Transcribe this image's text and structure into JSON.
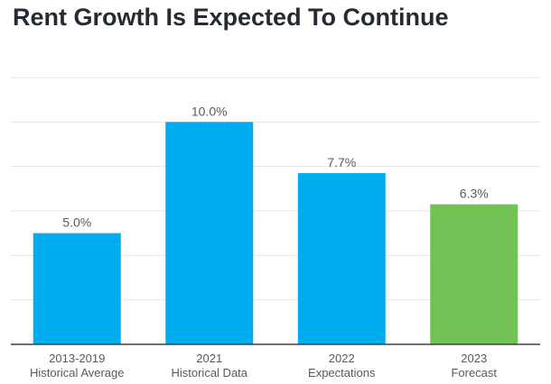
{
  "chart_data": {
    "type": "bar",
    "title": "Rent Growth Is Expected To Continue",
    "categories": [
      [
        "2013-2019",
        "Historical Average"
      ],
      [
        "2021",
        "Historical Data"
      ],
      [
        "2022",
        "Expectations"
      ],
      [
        "2023",
        "Forecast"
      ]
    ],
    "values": [
      5.0,
      10.0,
      7.7,
      6.3
    ],
    "data_labels": [
      "5.0%",
      "10.0%",
      "7.7%",
      "6.3%"
    ],
    "bar_colors": [
      "#00aeef",
      "#00aeef",
      "#00aeef",
      "#72c356"
    ],
    "ylim": [
      0,
      12
    ],
    "grid": true,
    "xlabel": "",
    "ylabel": ""
  }
}
